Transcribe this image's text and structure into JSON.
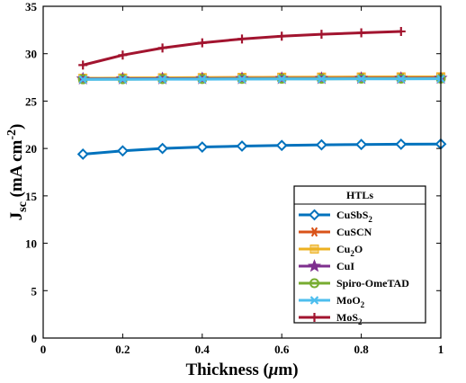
{
  "chart_data": {
    "type": "line",
    "title": "",
    "xlabel": "Thickness (μm)",
    "ylabel": "J_sc (mA cm^-2)",
    "xlim": [
      0,
      1
    ],
    "ylim": [
      0,
      35
    ],
    "xticks": [
      "0",
      "0.2",
      "0.4",
      "0.6",
      "0.8",
      "1"
    ],
    "yticks": [
      "0",
      "5",
      "10",
      "15",
      "20",
      "25",
      "30",
      "35"
    ],
    "legend": {
      "title": "HTLs",
      "placement": "lower-right"
    },
    "grid": false,
    "series": [
      {
        "name": "CuSbS2",
        "label_main": "CuSbS",
        "label_sub": "2",
        "color": "#0072BD",
        "marker": "diamond",
        "x": [
          0.1,
          0.2,
          0.3,
          0.4,
          0.5,
          0.6,
          0.7,
          0.8,
          0.9,
          1.0
        ],
        "y": [
          19.4,
          19.75,
          20.0,
          20.15,
          20.25,
          20.32,
          20.38,
          20.42,
          20.45,
          20.47
        ]
      },
      {
        "name": "CuSCN",
        "label_main": "CuSCN",
        "label_sub": "",
        "color": "#D95319",
        "marker": "star6",
        "x": [
          0.1,
          0.2,
          0.3,
          0.4,
          0.5,
          0.6,
          0.7,
          0.8,
          0.9,
          1.0
        ],
        "y": [
          27.4,
          27.42,
          27.44,
          27.46,
          27.48,
          27.5,
          27.51,
          27.52,
          27.53,
          27.54
        ]
      },
      {
        "name": "Cu2O",
        "label_main": "Cu",
        "label_sub": "2",
        "label_tail": "O",
        "color": "#EDB120",
        "marker": "square",
        "x": [
          0.1,
          0.2,
          0.3,
          0.4,
          0.5,
          0.6,
          0.7,
          0.8,
          0.9,
          1.0
        ],
        "y": [
          27.4,
          27.43,
          27.46,
          27.48,
          27.5,
          27.52,
          27.53,
          27.54,
          27.55,
          27.56
        ]
      },
      {
        "name": "CuI",
        "label_main": "CuI",
        "label_sub": "",
        "color": "#7E2F8E",
        "marker": "star5",
        "x": [
          0.1,
          0.2,
          0.3,
          0.4,
          0.5,
          0.6,
          0.7,
          0.8,
          0.9,
          1.0
        ],
        "y": [
          27.35,
          27.36,
          27.37,
          27.38,
          27.39,
          27.4,
          27.4,
          27.41,
          27.41,
          27.42
        ]
      },
      {
        "name": "Spiro-OmeTAD",
        "label_main": "Spiro-OmeTAD",
        "label_sub": "",
        "color": "#77AC30",
        "marker": "circle",
        "x": [
          0.1,
          0.2,
          0.3,
          0.4,
          0.5,
          0.6,
          0.7,
          0.8,
          0.9,
          1.0
        ],
        "y": [
          27.3,
          27.31,
          27.32,
          27.33,
          27.34,
          27.35,
          27.35,
          27.36,
          27.36,
          27.37
        ]
      },
      {
        "name": "MoO2",
        "label_main": "MoO",
        "label_sub": "2",
        "color": "#4DBEEE",
        "marker": "x",
        "x": [
          0.1,
          0.2,
          0.3,
          0.4,
          0.5,
          0.6,
          0.7,
          0.8,
          0.9,
          1.0
        ],
        "y": [
          27.28,
          27.29,
          27.3,
          27.31,
          27.32,
          27.33,
          27.33,
          27.34,
          27.34,
          27.35
        ]
      },
      {
        "name": "MoS2",
        "label_main": "MoS",
        "label_sub": "2",
        "color": "#A2142F",
        "marker": "plus",
        "x": [
          0.1,
          0.2,
          0.3,
          0.4,
          0.5,
          0.6,
          0.7,
          0.8,
          0.9
        ],
        "y": [
          28.8,
          29.85,
          30.6,
          31.15,
          31.55,
          31.85,
          32.05,
          32.2,
          32.35
        ]
      }
    ]
  }
}
